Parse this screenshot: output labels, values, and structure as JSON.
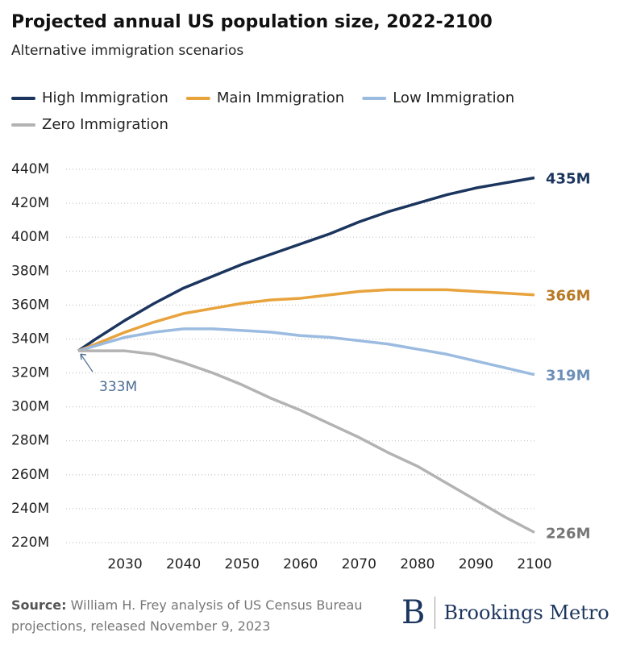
{
  "chart_data": {
    "type": "line",
    "title": "Projected annual US population size, 2022-2100",
    "subtitle": "Alternative immigration scenarios",
    "x": [
      2022,
      2025,
      2030,
      2035,
      2040,
      2045,
      2050,
      2055,
      2060,
      2065,
      2070,
      2075,
      2080,
      2085,
      2090,
      2095,
      2100
    ],
    "series": [
      {
        "name": "High Immigration",
        "color": "#1b355e",
        "label_color": "#1b355e",
        "values": [
          333,
          340,
          351,
          361,
          370,
          377,
          384,
          390,
          396,
          402,
          409,
          415,
          420,
          425,
          429,
          432,
          435
        ],
        "value_labels": [
          null,
          null,
          null,
          null,
          null,
          null,
          null,
          null,
          null,
          null,
          null,
          null,
          null,
          null,
          null,
          null,
          "435M"
        ]
      },
      {
        "name": "Main Immigration",
        "color": "#e8a33d",
        "label_color": "#b87a24",
        "values": [
          333,
          337,
          344,
          350,
          355,
          358,
          361,
          363,
          364,
          366,
          368,
          369,
          369,
          369,
          368,
          367,
          366
        ],
        "value_labels": [
          null,
          null,
          null,
          null,
          null,
          null,
          null,
          null,
          null,
          null,
          null,
          null,
          null,
          null,
          null,
          null,
          "366M"
        ]
      },
      {
        "name": "Low Immigration",
        "color": "#9bbbe0",
        "label_color": "#6c8fb8",
        "values": [
          333,
          336,
          341,
          344,
          346,
          346,
          345,
          344,
          342,
          341,
          339,
          337,
          334,
          331,
          327,
          323,
          319
        ],
        "value_labels": [
          null,
          null,
          null,
          null,
          null,
          null,
          null,
          null,
          null,
          null,
          null,
          null,
          null,
          null,
          null,
          null,
          "319M"
        ]
      },
      {
        "name": "Zero Immigration",
        "color": "#b3b3b3",
        "label_color": "#777777",
        "values": [
          333,
          333,
          333,
          331,
          326,
          320,
          313,
          305,
          298,
          290,
          282,
          273,
          265,
          255,
          245,
          235,
          226
        ],
        "value_labels": [
          null,
          null,
          null,
          null,
          null,
          null,
          null,
          null,
          null,
          null,
          null,
          null,
          null,
          null,
          null,
          null,
          "226M"
        ]
      }
    ],
    "annotations": [
      {
        "text": "333M",
        "x": 2022,
        "y": 333,
        "color": "#4a6d94"
      }
    ],
    "xlim": [
      2022,
      2100
    ],
    "xticks": [
      2030,
      2040,
      2050,
      2060,
      2070,
      2080,
      2090,
      2100
    ],
    "ylim": [
      220,
      440
    ],
    "yticks": [
      {
        "value": 220,
        "label": "220M"
      },
      {
        "value": 240,
        "label": "240M"
      },
      {
        "value": 260,
        "label": "260M"
      },
      {
        "value": 280,
        "label": "280M"
      },
      {
        "value": 300,
        "label": "300M"
      },
      {
        "value": 320,
        "label": "320M"
      },
      {
        "value": 340,
        "label": "340M"
      },
      {
        "value": 360,
        "label": "360M"
      },
      {
        "value": 380,
        "label": "380M"
      },
      {
        "value": 400,
        "label": "400M"
      },
      {
        "value": 420,
        "label": "420M"
      },
      {
        "value": 440,
        "label": "440M"
      }
    ],
    "grid": true,
    "source_label": "Source:",
    "source": "William H. Frey analysis of US Census Bureau projections, released November 9, 2023",
    "logo": {
      "mark": "B",
      "text": "Brookings Metro"
    }
  }
}
